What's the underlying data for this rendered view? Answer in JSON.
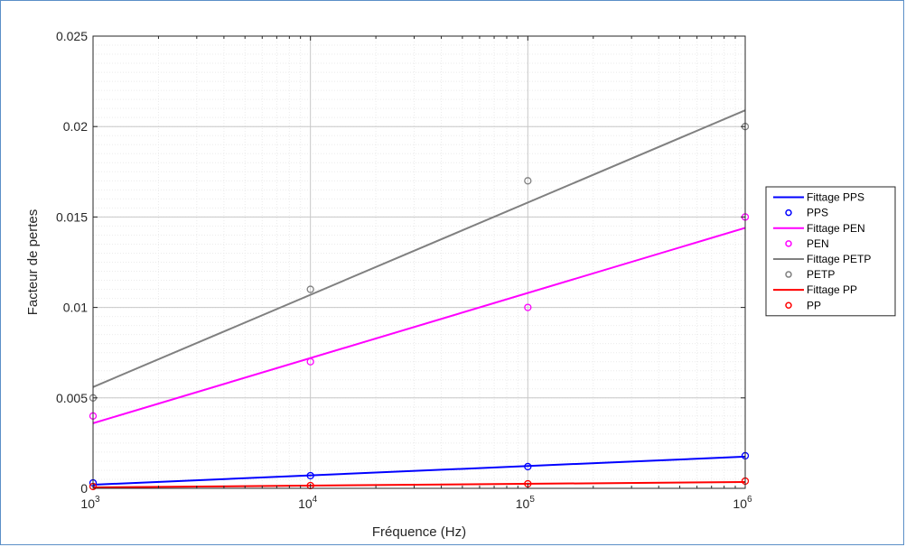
{
  "chart_data": {
    "type": "scatter",
    "xlabel": "Fréquence (Hz)",
    "ylabel": "Facteur de pertes",
    "xscale": "log",
    "xlim": [
      1000,
      1000000
    ],
    "ylim": [
      0,
      0.025
    ],
    "grid": true,
    "legend_position": "right",
    "x_ticks": [
      {
        "base": "10",
        "exp": "3"
      },
      {
        "base": "10",
        "exp": "4"
      },
      {
        "base": "10",
        "exp": "5"
      },
      {
        "base": "10",
        "exp": "6"
      }
    ],
    "y_ticks": [
      "0",
      "0.005",
      "0.01",
      "0.015",
      "0.02",
      "0.025"
    ],
    "y_tick_values": [
      0,
      0.005,
      0.01,
      0.015,
      0.02,
      0.025
    ],
    "series": [
      {
        "name": "PPS",
        "fit_name": "Fittage PPS",
        "color": "#0000ff",
        "x": [
          1000,
          10000,
          100000,
          1000000
        ],
        "y": [
          0.0003,
          0.0007,
          0.0012,
          0.0018
        ],
        "fit": [
          [
            1000,
            0.0002
          ],
          [
            1000000,
            0.00175
          ]
        ]
      },
      {
        "name": "PEN",
        "fit_name": "Fittage PEN",
        "color": "#ff00ff",
        "x": [
          1000,
          10000,
          100000,
          1000000
        ],
        "y": [
          0.004,
          0.007,
          0.01,
          0.015
        ],
        "fit": [
          [
            1000,
            0.0036
          ],
          [
            1000000,
            0.0144
          ]
        ]
      },
      {
        "name": "PETP",
        "fit_name": "Fittage PETP",
        "color": "#808080",
        "x": [
          1000,
          10000,
          100000,
          1000000
        ],
        "y": [
          0.005,
          0.011,
          0.017,
          0.02
        ],
        "fit": [
          [
            1000,
            0.0056
          ],
          [
            1000000,
            0.0209
          ]
        ]
      },
      {
        "name": "PP",
        "fit_name": "Fittage PP",
        "color": "#ff0000",
        "x": [
          1000,
          10000,
          100000,
          1000000
        ],
        "y": [
          0.0001,
          0.00015,
          0.00025,
          0.0004
        ],
        "fit": [
          [
            1000,
            5e-05
          ],
          [
            1000000,
            0.00035
          ]
        ]
      }
    ]
  }
}
